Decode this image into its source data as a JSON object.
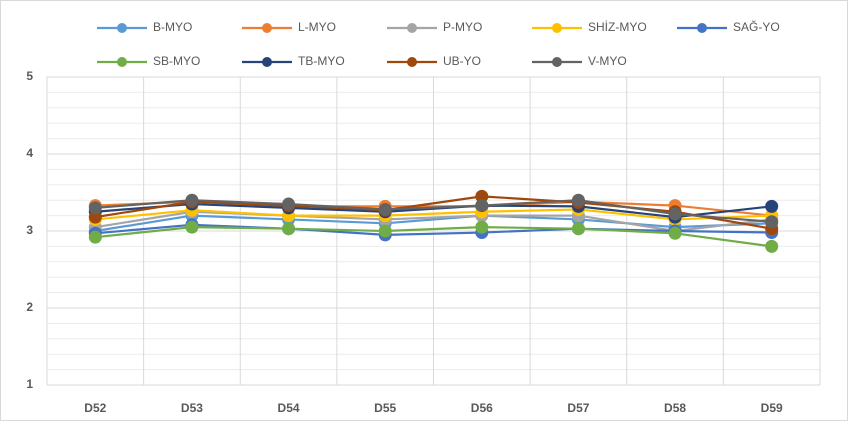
{
  "chart_data": {
    "type": "line",
    "categories": [
      "D52",
      "D53",
      "D54",
      "D55",
      "D56",
      "D57",
      "D58",
      "D59"
    ],
    "series": [
      {
        "name": "B-MYO",
        "color": "#5b9bd5",
        "values": [
          3.0,
          3.2,
          3.15,
          3.1,
          3.2,
          3.15,
          3.05,
          3.1
        ]
      },
      {
        "name": "L-MYO",
        "color": "#ed7d31",
        "values": [
          3.33,
          3.38,
          3.32,
          3.32,
          3.32,
          3.38,
          3.33,
          3.2
        ]
      },
      {
        "name": "P-MYO",
        "color": "#a5a5a5",
        "values": [
          3.05,
          3.25,
          3.2,
          3.15,
          3.2,
          3.2,
          3.0,
          3.15
        ]
      },
      {
        "name": "SHİZ-MYO",
        "color": "#ffc000",
        "values": [
          3.15,
          3.27,
          3.2,
          3.2,
          3.25,
          3.28,
          3.15,
          3.2
        ]
      },
      {
        "name": "SAĞ-YO",
        "color": "#4472c4",
        "values": [
          2.97,
          3.08,
          3.03,
          2.95,
          2.98,
          3.03,
          3.0,
          2.98
        ]
      },
      {
        "name": "SB-MYO",
        "color": "#70ad47",
        "values": [
          2.92,
          3.05,
          3.03,
          3.0,
          3.05,
          3.03,
          2.97,
          2.8
        ]
      },
      {
        "name": "TB-MYO",
        "color": "#264478",
        "values": [
          3.25,
          3.35,
          3.3,
          3.25,
          3.33,
          3.32,
          3.18,
          3.32
        ]
      },
      {
        "name": "UB-YO",
        "color": "#9e480e",
        "values": [
          3.18,
          3.38,
          3.33,
          3.27,
          3.45,
          3.37,
          3.25,
          3.03
        ]
      },
      {
        "name": "V-MYO",
        "color": "#636363",
        "values": [
          3.3,
          3.4,
          3.35,
          3.28,
          3.33,
          3.4,
          3.22,
          3.12
        ]
      }
    ],
    "ylim": [
      1,
      5
    ],
    "yticks": [
      1,
      2,
      3,
      4,
      5
    ],
    "grid": true,
    "legend": "top"
  }
}
